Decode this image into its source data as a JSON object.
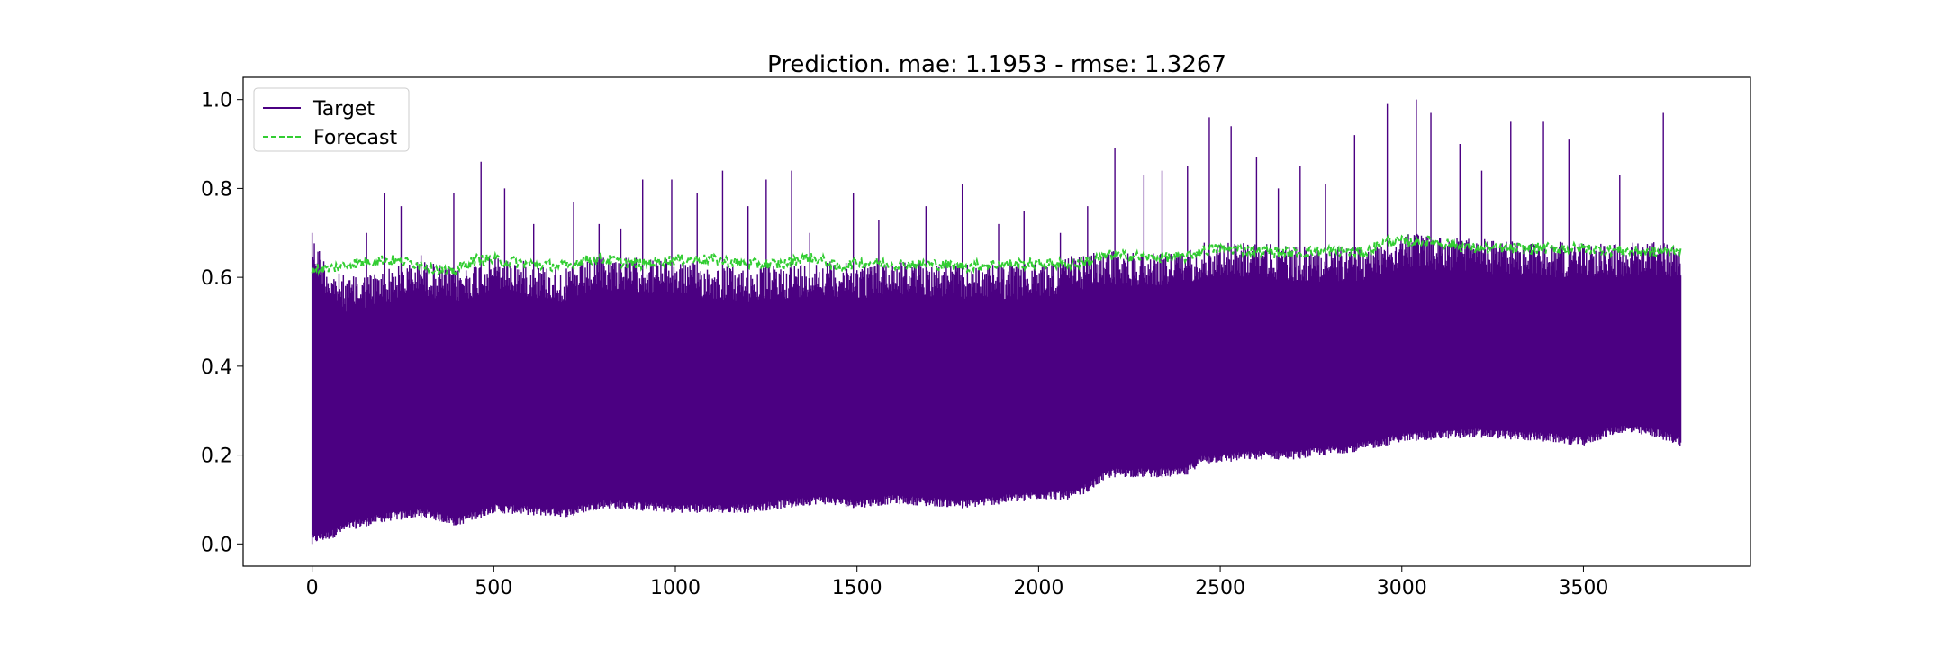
{
  "chart_data": {
    "type": "line",
    "title": "Prediction. mae: 1.1953 - rmse: 1.3267",
    "xlabel": "",
    "ylabel": "",
    "xlim": [
      -190,
      3960
    ],
    "ylim": [
      -0.05,
      1.05
    ],
    "x_ticks": [
      0,
      500,
      1000,
      1500,
      2000,
      2500,
      3000,
      3500
    ],
    "x_tick_labels": [
      "0",
      "500",
      "1000",
      "1500",
      "2000",
      "2500",
      "3000",
      "3500"
    ],
    "y_ticks": [
      0.0,
      0.2,
      0.4,
      0.6,
      0.8,
      1.0
    ],
    "y_tick_labels": [
      "0.0",
      "0.2",
      "0.4",
      "0.6",
      "0.8",
      "1.0"
    ],
    "grid": false,
    "legend": {
      "position": "upper-left",
      "entries": [
        "Target",
        "Forecast"
      ]
    },
    "n_points": 3770,
    "series": [
      {
        "name": "Target",
        "color": "#4b0082",
        "line_style": "solid",
        "envelope": {
          "x": [
            0,
            50,
            100,
            200,
            300,
            400,
            500,
            700,
            800,
            1000,
            1200,
            1400,
            1500,
            1600,
            1800,
            2000,
            2100,
            2200,
            2300,
            2400,
            2450,
            2600,
            2700,
            2800,
            2900,
            3000,
            3200,
            3400,
            3500,
            3600,
            3700,
            3770
          ],
          "lower": [
            0.0,
            0.01,
            0.03,
            0.05,
            0.06,
            0.04,
            0.07,
            0.06,
            0.08,
            0.07,
            0.07,
            0.09,
            0.08,
            0.09,
            0.08,
            0.1,
            0.1,
            0.15,
            0.15,
            0.15,
            0.18,
            0.19,
            0.19,
            0.2,
            0.21,
            0.23,
            0.24,
            0.23,
            0.22,
            0.25,
            0.24,
            0.22
          ],
          "upper": [
            0.7,
            0.62,
            0.6,
            0.62,
            0.64,
            0.62,
            0.65,
            0.62,
            0.65,
            0.64,
            0.62,
            0.64,
            0.63,
            0.64,
            0.63,
            0.63,
            0.65,
            0.66,
            0.66,
            0.66,
            0.68,
            0.68,
            0.67,
            0.67,
            0.67,
            0.7,
            0.69,
            0.68,
            0.68,
            0.68,
            0.68,
            0.68
          ]
        },
        "spikes": [
          [
            0,
            0.7
          ],
          [
            120,
            0.6
          ],
          [
            150,
            0.7
          ],
          [
            200,
            0.79
          ],
          [
            245,
            0.76
          ],
          [
            300,
            0.65
          ],
          [
            390,
            0.79
          ],
          [
            465,
            0.86
          ],
          [
            530,
            0.8
          ],
          [
            610,
            0.72
          ],
          [
            720,
            0.77
          ],
          [
            790,
            0.72
          ],
          [
            850,
            0.71
          ],
          [
            910,
            0.82
          ],
          [
            990,
            0.82
          ],
          [
            1060,
            0.79
          ],
          [
            1130,
            0.84
          ],
          [
            1200,
            0.76
          ],
          [
            1250,
            0.82
          ],
          [
            1320,
            0.84
          ],
          [
            1370,
            0.7
          ],
          [
            1490,
            0.79
          ],
          [
            1560,
            0.73
          ],
          [
            1690,
            0.76
          ],
          [
            1790,
            0.81
          ],
          [
            1890,
            0.72
          ],
          [
            1960,
            0.75
          ],
          [
            2060,
            0.7
          ],
          [
            2135,
            0.76
          ],
          [
            2210,
            0.89
          ],
          [
            2290,
            0.83
          ],
          [
            2340,
            0.84
          ],
          [
            2410,
            0.85
          ],
          [
            2470,
            0.96
          ],
          [
            2530,
            0.94
          ],
          [
            2600,
            0.87
          ],
          [
            2660,
            0.8
          ],
          [
            2720,
            0.85
          ],
          [
            2790,
            0.81
          ],
          [
            2870,
            0.92
          ],
          [
            2960,
            0.99
          ],
          [
            3040,
            1.0
          ],
          [
            3080,
            0.97
          ],
          [
            3160,
            0.9
          ],
          [
            3220,
            0.84
          ],
          [
            3300,
            0.95
          ],
          [
            3390,
            0.95
          ],
          [
            3460,
            0.91
          ],
          [
            3600,
            0.83
          ],
          [
            3720,
            0.97
          ]
        ]
      },
      {
        "name": "Forecast",
        "color": "#32cd32",
        "line_style": "dashed",
        "x": [
          0,
          50,
          100,
          200,
          300,
          380,
          450,
          500,
          600,
          700,
          750,
          800,
          900,
          1000,
          1100,
          1200,
          1300,
          1350,
          1400,
          1450,
          1500,
          1600,
          1700,
          1800,
          1900,
          2000,
          2100,
          2200,
          2300,
          2400,
          2450,
          2500,
          2600,
          2700,
          2800,
          2900,
          2950,
          3000,
          3100,
          3200,
          3300,
          3400,
          3500,
          3600,
          3700,
          3770
        ],
        "values": [
          0.62,
          0.62,
          0.63,
          0.64,
          0.63,
          0.61,
          0.64,
          0.64,
          0.63,
          0.625,
          0.64,
          0.64,
          0.63,
          0.64,
          0.64,
          0.63,
          0.63,
          0.645,
          0.64,
          0.62,
          0.635,
          0.63,
          0.63,
          0.625,
          0.63,
          0.63,
          0.63,
          0.65,
          0.645,
          0.645,
          0.66,
          0.665,
          0.66,
          0.655,
          0.66,
          0.655,
          0.68,
          0.68,
          0.68,
          0.665,
          0.665,
          0.665,
          0.665,
          0.66,
          0.655,
          0.665
        ]
      }
    ]
  }
}
